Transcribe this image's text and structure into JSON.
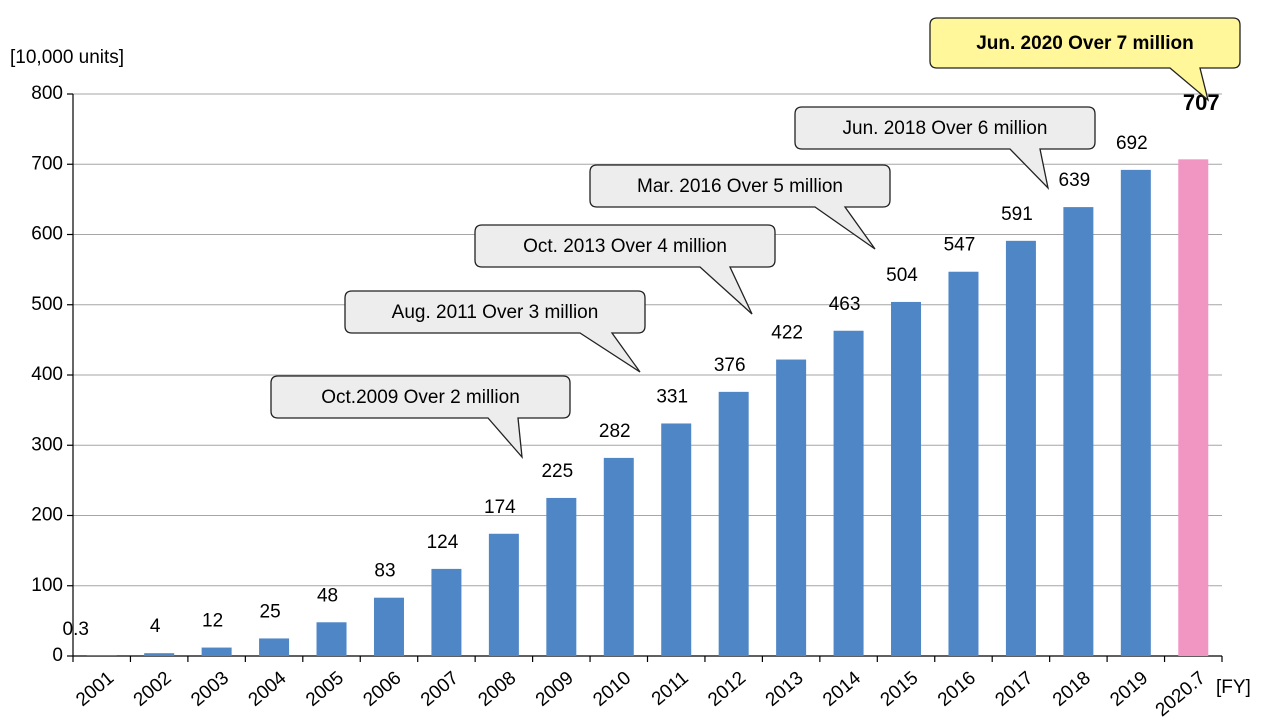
{
  "chart_data": {
    "type": "bar",
    "y_label": "[10,000 units]",
    "x_label": "[FY]",
    "categories": [
      "2001",
      "2002",
      "2003",
      "2004",
      "2005",
      "2006",
      "2007",
      "2008",
      "2009",
      "2010",
      "2011",
      "2012",
      "2013",
      "2014",
      "2015",
      "2016",
      "2017",
      "2018",
      "2019",
      "2020.7"
    ],
    "values": [
      0.3,
      4,
      12,
      25,
      48,
      83,
      124,
      174,
      225,
      282,
      331,
      376,
      422,
      463,
      504,
      547,
      591,
      639,
      692,
      707
    ],
    "colors": [
      "#4f86c6",
      "#4f86c6",
      "#4f86c6",
      "#4f86c6",
      "#4f86c6",
      "#4f86c6",
      "#4f86c6",
      "#4f86c6",
      "#4f86c6",
      "#4f86c6",
      "#4f86c6",
      "#4f86c6",
      "#4f86c6",
      "#4f86c6",
      "#4f86c6",
      "#4f86c6",
      "#4f86c6",
      "#4f86c6",
      "#4f86c6",
      "#f195c3"
    ],
    "ylim": [
      0,
      800
    ],
    "yticks": [
      0,
      100,
      200,
      300,
      400,
      500,
      600,
      700,
      800
    ],
    "grid": true,
    "annotations": [
      "Oct.2009 Over 2 million",
      "Aug. 2011 Over 3 million",
      "Oct. 2013 Over 4 million",
      "Mar. 2016 Over 5 million",
      "Jun. 2018 Over 6 million",
      "Jun. 2020 Over 7 million"
    ]
  }
}
